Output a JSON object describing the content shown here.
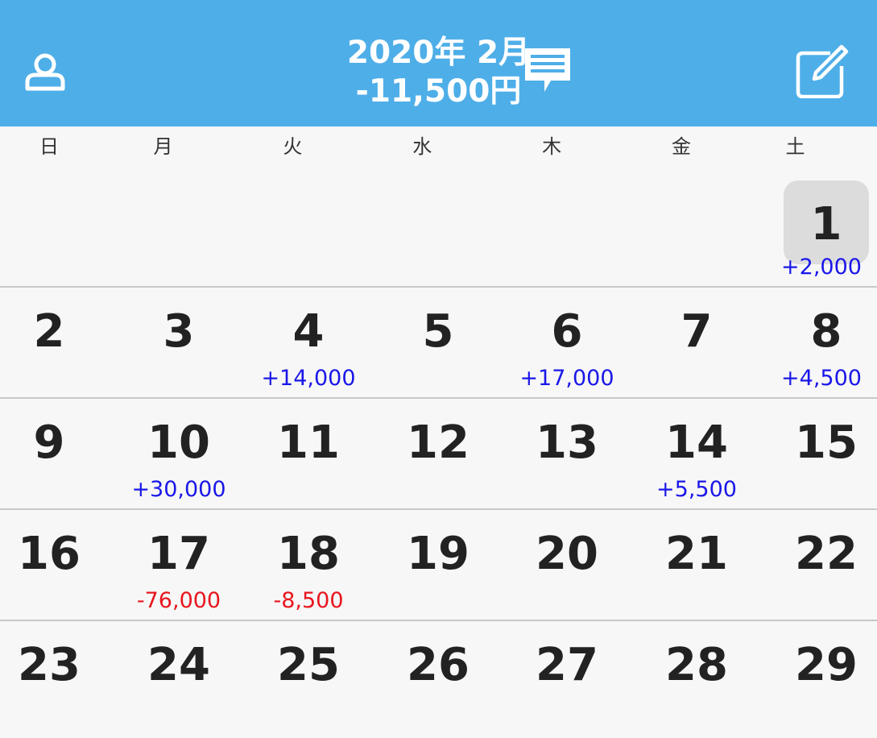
{
  "header": {
    "month_label": "2020年 2月",
    "total_label": "-11,500円",
    "background_color": "#4eaee8",
    "profile_icon": "person-icon",
    "message_icon": "speech-bubble-icon",
    "edit_icon": "compose-icon"
  },
  "weekdays": [
    "日",
    "月",
    "火",
    "水",
    "木",
    "金",
    "土"
  ],
  "colors": {
    "positive": "#1a17e8",
    "negative": "#e8161d"
  },
  "weeks": [
    [
      null,
      null,
      null,
      null,
      null,
      null,
      {
        "day": "1",
        "amount": "+2,000",
        "type": "pos",
        "selected": true
      }
    ],
    [
      {
        "day": "2"
      },
      {
        "day": "3"
      },
      {
        "day": "4",
        "amount": "+14,000",
        "type": "pos"
      },
      {
        "day": "5"
      },
      {
        "day": "6",
        "amount": "+17,000",
        "type": "pos"
      },
      {
        "day": "7"
      },
      {
        "day": "8",
        "amount": "+4,500",
        "type": "pos"
      }
    ],
    [
      {
        "day": "9"
      },
      {
        "day": "10",
        "amount": "+30,000",
        "type": "pos"
      },
      {
        "day": "11"
      },
      {
        "day": "12"
      },
      {
        "day": "13"
      },
      {
        "day": "14",
        "amount": "+5,500",
        "type": "pos"
      },
      {
        "day": "15"
      }
    ],
    [
      {
        "day": "16"
      },
      {
        "day": "17",
        "amount": "-76,000",
        "type": "neg"
      },
      {
        "day": "18",
        "amount": "-8,500",
        "type": "neg"
      },
      {
        "day": "19"
      },
      {
        "day": "20"
      },
      {
        "day": "21"
      },
      {
        "day": "22"
      }
    ],
    [
      {
        "day": "23"
      },
      {
        "day": "24"
      },
      {
        "day": "25"
      },
      {
        "day": "26"
      },
      {
        "day": "27"
      },
      {
        "day": "28"
      },
      {
        "day": "29"
      }
    ]
  ]
}
